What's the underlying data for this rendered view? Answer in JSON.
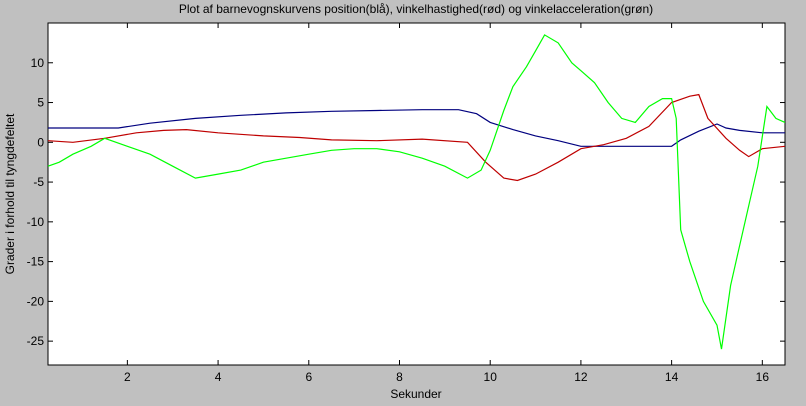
{
  "chart_data": {
    "type": "line",
    "title": "Plot af barnevognskurvens position(blå), vinkelhastighed(rød) og vinkelacceleration(grøn)",
    "xlabel": "Sekunder",
    "ylabel": "Grader i forhold til tyngdefeltet",
    "xlim": [
      0.25,
      16.5
    ],
    "ylim": [
      -28,
      15
    ],
    "xticks": [
      2,
      4,
      6,
      8,
      10,
      12,
      14,
      16
    ],
    "yticks": [
      10,
      5,
      0,
      -5,
      -10,
      -15,
      -20,
      -25
    ],
    "grid": false,
    "background": "#ffffff",
    "series": [
      {
        "color": "#00007f",
        "x": [
          0.25,
          1.0,
          1.8,
          2.5,
          3.5,
          4.5,
          5.5,
          6.5,
          7.5,
          8.5,
          9.3,
          9.7,
          10.0,
          10.5,
          11.0,
          11.5,
          12.0,
          12.5,
          13.0,
          13.5,
          14.0,
          14.2,
          14.6,
          15.0,
          15.2,
          15.5,
          16.0,
          16.5
        ],
        "y": [
          1.8,
          1.8,
          1.8,
          2.4,
          3.0,
          3.4,
          3.7,
          3.9,
          4.0,
          4.1,
          4.1,
          3.6,
          2.5,
          1.6,
          0.8,
          0.2,
          -0.5,
          -0.5,
          -0.5,
          -0.5,
          -0.5,
          0.3,
          1.4,
          2.3,
          1.8,
          1.5,
          1.2,
          1.2
        ]
      },
      {
        "color": "#bf0000",
        "x": [
          0.25,
          0.8,
          1.5,
          2.2,
          2.8,
          3.3,
          4.0,
          5.0,
          5.8,
          6.5,
          7.5,
          8.5,
          9.5,
          9.9,
          10.3,
          10.6,
          11.0,
          11.5,
          12.0,
          12.5,
          13.0,
          13.5,
          14.0,
          14.4,
          14.6,
          14.8,
          15.2,
          15.5,
          15.7,
          16.0,
          16.5
        ],
        "y": [
          0.2,
          0.0,
          0.5,
          1.2,
          1.5,
          1.6,
          1.2,
          0.8,
          0.6,
          0.3,
          0.2,
          0.4,
          0.0,
          -2.5,
          -4.5,
          -4.8,
          -4.0,
          -2.5,
          -0.8,
          -0.3,
          0.5,
          2.0,
          5.0,
          5.8,
          6.0,
          3.0,
          0.5,
          -1.0,
          -1.8,
          -0.8,
          -0.5
        ]
      },
      {
        "color": "#00ff00",
        "x": [
          0.25,
          0.5,
          0.8,
          1.2,
          1.5,
          2.0,
          2.5,
          3.0,
          3.5,
          4.0,
          4.5,
          5.0,
          5.5,
          6.0,
          6.5,
          7.0,
          7.5,
          8.0,
          8.5,
          9.0,
          9.5,
          9.8,
          10.0,
          10.3,
          10.5,
          10.8,
          11.0,
          11.2,
          11.5,
          11.8,
          12.0,
          12.3,
          12.6,
          12.9,
          13.2,
          13.5,
          13.8,
          14.0,
          14.1,
          14.2,
          14.4,
          14.7,
          15.0,
          15.1,
          15.3,
          15.5,
          15.7,
          15.9,
          16.1,
          16.3,
          16.5
        ],
        "y": [
          -3.0,
          -2.5,
          -1.5,
          -0.5,
          0.5,
          -0.5,
          -1.5,
          -3.0,
          -4.5,
          -4.0,
          -3.5,
          -2.5,
          -2.0,
          -1.5,
          -1.0,
          -0.8,
          -0.8,
          -1.2,
          -2.0,
          -3.0,
          -4.5,
          -3.5,
          -1.0,
          4.0,
          7.0,
          9.5,
          11.5,
          13.5,
          12.5,
          10.0,
          9.0,
          7.5,
          5.0,
          3.0,
          2.5,
          4.5,
          5.5,
          5.5,
          3.0,
          -11.0,
          -15.0,
          -20.0,
          -23.0,
          -26.0,
          -18.0,
          -13.0,
          -8.0,
          -3.0,
          4.5,
          3.0,
          2.5
        ]
      }
    ]
  }
}
